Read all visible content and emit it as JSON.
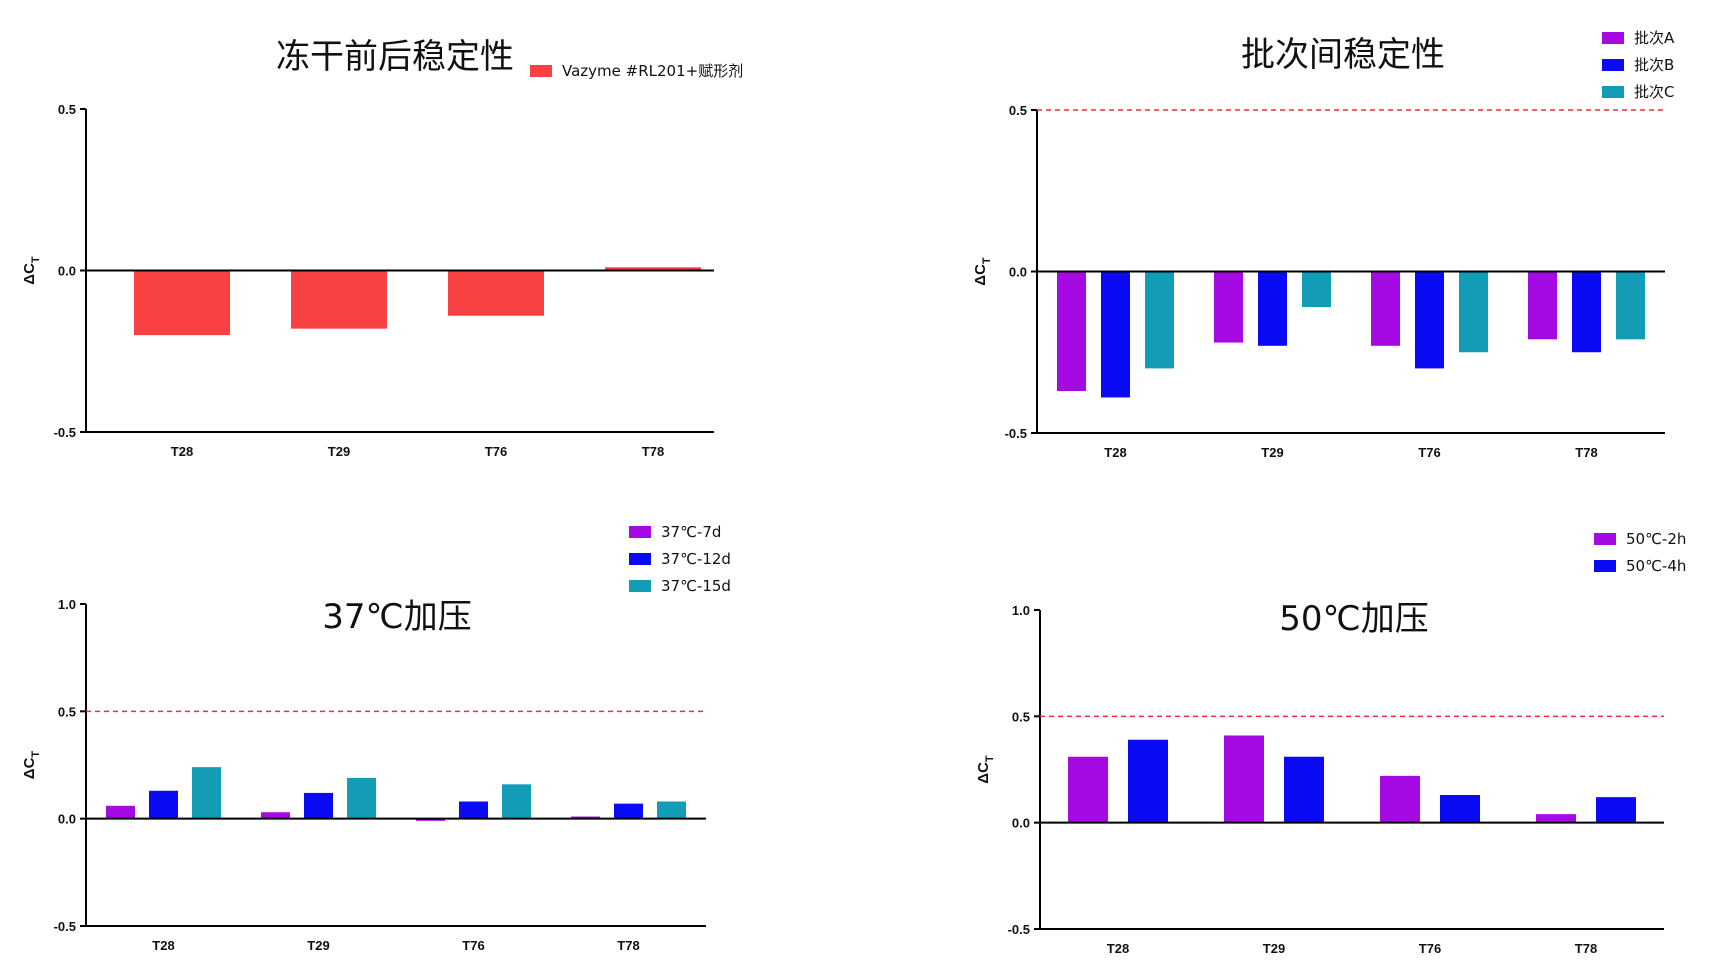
{
  "chart_data": [
    {
      "type": "bar",
      "title": "冻干前后稳定性",
      "ylabel": "ΔC",
      "ylabel_sub": "T",
      "categories": [
        "T28",
        "T29",
        "T76",
        "T78"
      ],
      "ylim": [
        -0.5,
        0.5
      ],
      "yticks": [
        "-0.5",
        "0.0",
        "0.5"
      ],
      "ytick_values": [
        -0.5,
        0.0,
        0.5
      ],
      "threshold": null,
      "legend_position": "top-right",
      "grid": false,
      "series": [
        {
          "name": "Vazyme #RL201+赋形剂",
          "color": "#f94144",
          "values": [
            -0.2,
            -0.18,
            -0.14,
            0.01
          ]
        }
      ]
    },
    {
      "type": "bar",
      "title": "批次间稳定性",
      "ylabel": "ΔC",
      "ylabel_sub": "T",
      "categories": [
        "T28",
        "T29",
        "T76",
        "T78"
      ],
      "ylim": [
        -0.5,
        0.5
      ],
      "yticks": [
        "-0.5",
        "0.0",
        "0.5"
      ],
      "ytick_values": [
        -0.5,
        0.0,
        0.5
      ],
      "threshold": 0.5,
      "threshold_color": "#e8303a",
      "legend_position": "top-right",
      "grid": false,
      "series": [
        {
          "name": "批次A",
          "color": "#a50ae3",
          "values": [
            -0.37,
            -0.22,
            -0.23,
            -0.21
          ]
        },
        {
          "name": "批次B",
          "color": "#0a0af5",
          "values": [
            -0.39,
            -0.23,
            -0.3,
            -0.25
          ]
        },
        {
          "name": "批次C",
          "color": "#129cb6",
          "values": [
            -0.3,
            -0.11,
            -0.25,
            -0.21
          ]
        }
      ]
    },
    {
      "type": "bar",
      "title": "37℃加压",
      "ylabel": "ΔC",
      "ylabel_sub": "T",
      "categories": [
        "T28",
        "T29",
        "T76",
        "T78"
      ],
      "ylim": [
        -0.5,
        1.0
      ],
      "yticks": [
        "-0.5",
        "0.0",
        "0.5",
        "1.0"
      ],
      "ytick_values": [
        -0.5,
        0.0,
        0.5,
        1.0
      ],
      "threshold": 0.5,
      "threshold_color": "#e8303a",
      "legend_position": "top-right",
      "grid": false,
      "series": [
        {
          "name": "37℃-7d",
          "color": "#a50ae3",
          "values": [
            0.06,
            0.03,
            -0.01,
            0.01
          ]
        },
        {
          "name": "37℃-12d",
          "color": "#0a0af5",
          "values": [
            0.13,
            0.12,
            0.08,
            0.07
          ]
        },
        {
          "name": "37℃-15d",
          "color": "#129cb6",
          "values": [
            0.24,
            0.19,
            0.16,
            0.08
          ]
        }
      ]
    },
    {
      "type": "bar",
      "title": "50℃加压",
      "ylabel": "ΔC",
      "ylabel_sub": "T",
      "categories": [
        "T28",
        "T29",
        "T76",
        "T78"
      ],
      "ylim": [
        -0.5,
        1.0
      ],
      "yticks": [
        "-0.5",
        "0.0",
        "0.5",
        "1.0"
      ],
      "ytick_values": [
        -0.5,
        0.0,
        0.5,
        1.0
      ],
      "threshold": 0.5,
      "threshold_color": "#e8303a",
      "legend_position": "top-right",
      "grid": false,
      "series": [
        {
          "name": "50℃-2h",
          "color": "#a50ae3",
          "values": [
            0.31,
            0.41,
            0.22,
            0.04
          ]
        },
        {
          "name": "50℃-4h",
          "color": "#0a0af5",
          "values": [
            0.39,
            0.31,
            0.13,
            0.12
          ]
        }
      ]
    }
  ]
}
